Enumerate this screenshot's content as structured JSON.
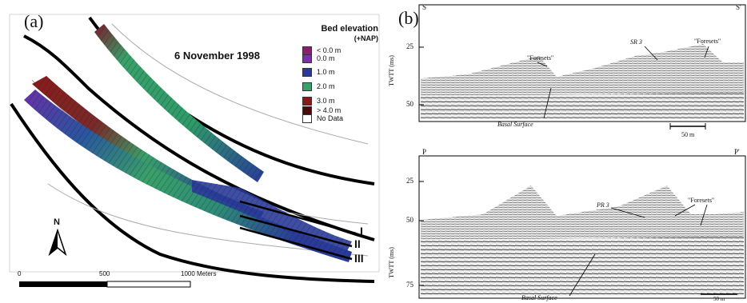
{
  "panel_a": {
    "label": "(a)",
    "date": "6 November 1998",
    "legend": {
      "title": "Bed elevation",
      "subtitle": "(+NAP)",
      "items": [
        {
          "label": "< 0.0 m",
          "color": "#8b1e6e"
        },
        {
          "label": "0.0 m",
          "color": "#7b2fa8"
        },
        {
          "label": "1.0 m",
          "color": "#2a3a9a"
        },
        {
          "label": "2.0 m",
          "color": "#3aa06a"
        },
        {
          "label": "3.0 m",
          "color": "#8a1a1a"
        },
        {
          "label": "> 4.0 m",
          "color": "#4a0a0a"
        },
        {
          "label": "No Data",
          "color": "#ffffff"
        }
      ]
    },
    "north": "N",
    "sections": [
      "I",
      "II",
      "III"
    ],
    "scale": {
      "ticks": [
        "0",
        "500",
        "1000 Meters"
      ]
    }
  },
  "panel_b": {
    "label": "(b)",
    "top": {
      "start": "S",
      "end": "S'",
      "y_axis": "TWTT (ms)",
      "y_ticks": [
        "25",
        "50"
      ],
      "annotations": [
        "\"Foresets\"",
        "SR 3",
        "\"Foresets\"",
        "Basal Surface"
      ],
      "scale": "50 m"
    },
    "bottom": {
      "start": "P",
      "end": "P'",
      "y_axis": "TWTT (ms)",
      "y_ticks": [
        "25",
        "50",
        "75"
      ],
      "annotations": [
        "PR 3",
        "\"Foresets\"",
        "Basal Surface"
      ],
      "scale": "50 m"
    }
  }
}
